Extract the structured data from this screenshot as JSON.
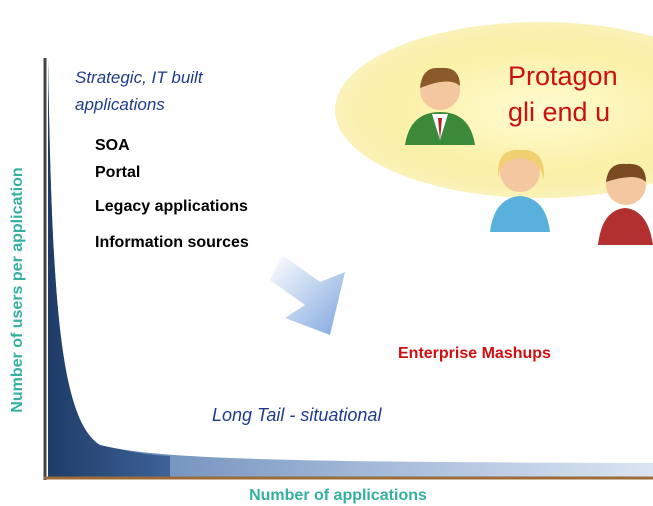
{
  "y_axis_label": "Number of users per application",
  "x_axis_label": "Number of applications",
  "head": {
    "title_lines": [
      "Strategic, IT built",
      "applications"
    ],
    "items": [
      "SOA",
      "Portal",
      "Legacy applications",
      "Information sources"
    ]
  },
  "bubble": {
    "lines": [
      "Protagon",
      "gli end u"
    ]
  },
  "mashups_label": "Enterprise Mashups",
  "tail_label": "Long Tail - situational"
}
